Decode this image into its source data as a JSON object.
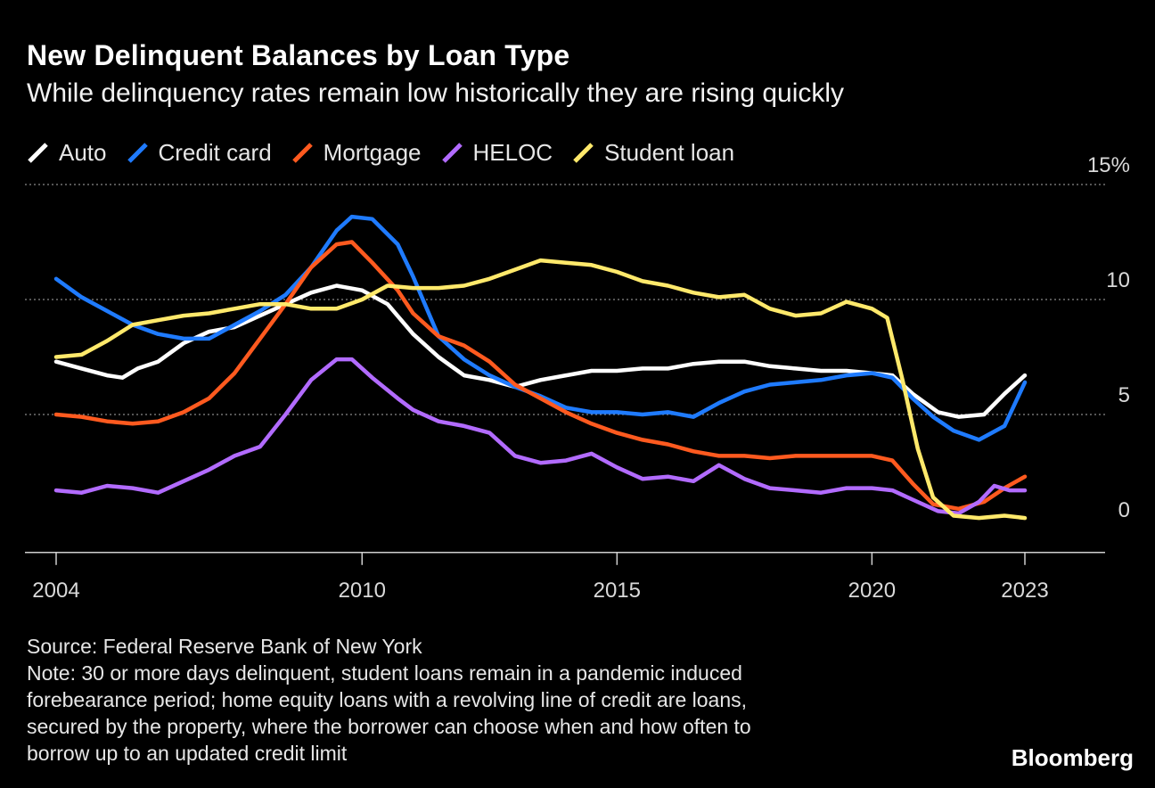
{
  "header": {
    "title": "New Delinquent Balances by Loan Type",
    "subtitle": "While delinquency rates remain low historically they are rising quickly"
  },
  "footer": {
    "source": "Source: Federal Reserve Bank of New York",
    "note_lines": [
      "Note: 30 or more days delinquent, student loans remain in a pandemic induced",
      "forebearance period; home equity loans with a revolving line of credit are loans,",
      "secured by the property, where the borrower can choose when and how often to",
      "borrow up to an updated credit limit"
    ],
    "brand": "Bloomberg"
  },
  "chart_data": {
    "type": "line",
    "title": "New Delinquent Balances by Loan Type",
    "subtitle": "While delinquency rates remain low historically they are rising quickly",
    "xlabel": "",
    "ylabel": "",
    "xlim": [
      2004,
      2025.5
    ],
    "ylim": [
      -1,
      15
    ],
    "x_ticks": [
      {
        "value": 2004,
        "label": "2004"
      },
      {
        "value": 2010,
        "label": "2010"
      },
      {
        "value": 2015,
        "label": "2015"
      },
      {
        "value": 2020,
        "label": "2020"
      },
      {
        "value": 2023,
        "label": "2023"
      }
    ],
    "y_ticks": [
      {
        "value": 0,
        "label": "0"
      },
      {
        "value": 5,
        "label": "5"
      },
      {
        "value": 10,
        "label": "10"
      },
      {
        "value": 15,
        "label": "15%"
      }
    ],
    "grid": "horizontal dotted",
    "legend_position": "top-left",
    "series": [
      {
        "name": "Auto",
        "color": "#ffffff",
        "points": [
          [
            2004,
            7.3
          ],
          [
            2004.5,
            7.0
          ],
          [
            2005,
            6.7
          ],
          [
            2005.3,
            6.6
          ],
          [
            2005.6,
            7.0
          ],
          [
            2006,
            7.3
          ],
          [
            2006.5,
            8.1
          ],
          [
            2007,
            8.6
          ],
          [
            2007.5,
            8.8
          ],
          [
            2008,
            9.3
          ],
          [
            2008.5,
            9.8
          ],
          [
            2009,
            10.3
          ],
          [
            2009.5,
            10.6
          ],
          [
            2010,
            10.4
          ],
          [
            2010.5,
            9.8
          ],
          [
            2011,
            8.5
          ],
          [
            2011.5,
            7.5
          ],
          [
            2012,
            6.7
          ],
          [
            2012.5,
            6.5
          ],
          [
            2013,
            6.2
          ],
          [
            2013.5,
            6.5
          ],
          [
            2014,
            6.7
          ],
          [
            2014.5,
            6.9
          ],
          [
            2015,
            6.9
          ],
          [
            2015.5,
            7.0
          ],
          [
            2016,
            7.0
          ],
          [
            2016.5,
            7.2
          ],
          [
            2017,
            7.3
          ],
          [
            2017.5,
            7.3
          ],
          [
            2018,
            7.1
          ],
          [
            2018.5,
            7.0
          ],
          [
            2019,
            6.9
          ],
          [
            2019.5,
            6.9
          ],
          [
            2020,
            6.8
          ],
          [
            2020.4,
            6.7
          ],
          [
            2020.8,
            5.9
          ],
          [
            2021.3,
            5.1
          ],
          [
            2021.7,
            4.9
          ],
          [
            2022.2,
            5.0
          ],
          [
            2022.6,
            5.9
          ],
          [
            2023,
            6.7
          ]
        ]
      },
      {
        "name": "Credit card",
        "color": "#1f7bff",
        "points": [
          [
            2004,
            10.9
          ],
          [
            2004.5,
            10.1
          ],
          [
            2005,
            9.5
          ],
          [
            2005.5,
            8.9
          ],
          [
            2006,
            8.5
          ],
          [
            2006.5,
            8.3
          ],
          [
            2007,
            8.3
          ],
          [
            2007.5,
            8.9
          ],
          [
            2008,
            9.5
          ],
          [
            2008.5,
            10.2
          ],
          [
            2009,
            11.4
          ],
          [
            2009.5,
            13.0
          ],
          [
            2009.8,
            13.6
          ],
          [
            2010.2,
            13.5
          ],
          [
            2010.7,
            12.4
          ],
          [
            2011,
            11.0
          ],
          [
            2011.5,
            8.4
          ],
          [
            2012,
            7.4
          ],
          [
            2012.5,
            6.7
          ],
          [
            2013,
            6.2
          ],
          [
            2013.5,
            5.8
          ],
          [
            2014,
            5.3
          ],
          [
            2014.5,
            5.1
          ],
          [
            2015,
            5.1
          ],
          [
            2015.5,
            5.0
          ],
          [
            2016,
            5.1
          ],
          [
            2016.5,
            4.9
          ],
          [
            2017,
            5.5
          ],
          [
            2017.5,
            6.0
          ],
          [
            2018,
            6.3
          ],
          [
            2018.5,
            6.4
          ],
          [
            2019,
            6.5
          ],
          [
            2019.5,
            6.7
          ],
          [
            2020,
            6.8
          ],
          [
            2020.4,
            6.6
          ],
          [
            2020.8,
            5.7
          ],
          [
            2021.2,
            4.9
          ],
          [
            2021.6,
            4.3
          ],
          [
            2022.1,
            3.9
          ],
          [
            2022.6,
            4.5
          ],
          [
            2023,
            6.4
          ]
        ]
      },
      {
        "name": "Mortgage",
        "color": "#ff5a1f",
        "points": [
          [
            2004,
            5.0
          ],
          [
            2004.5,
            4.9
          ],
          [
            2005,
            4.7
          ],
          [
            2005.5,
            4.6
          ],
          [
            2006,
            4.7
          ],
          [
            2006.5,
            5.1
          ],
          [
            2007,
            5.7
          ],
          [
            2007.5,
            6.8
          ],
          [
            2008,
            8.3
          ],
          [
            2008.5,
            9.8
          ],
          [
            2009,
            11.4
          ],
          [
            2009.5,
            12.4
          ],
          [
            2009.8,
            12.5
          ],
          [
            2010.2,
            11.6
          ],
          [
            2010.7,
            10.4
          ],
          [
            2011,
            9.4
          ],
          [
            2011.5,
            8.4
          ],
          [
            2012,
            8.0
          ],
          [
            2012.5,
            7.3
          ],
          [
            2013,
            6.3
          ],
          [
            2013.5,
            5.7
          ],
          [
            2014,
            5.1
          ],
          [
            2014.5,
            4.6
          ],
          [
            2015,
            4.2
          ],
          [
            2015.5,
            3.9
          ],
          [
            2016,
            3.7
          ],
          [
            2016.5,
            3.4
          ],
          [
            2017,
            3.2
          ],
          [
            2017.5,
            3.2
          ],
          [
            2018,
            3.1
          ],
          [
            2018.5,
            3.2
          ],
          [
            2019,
            3.2
          ],
          [
            2019.5,
            3.2
          ],
          [
            2020,
            3.2
          ],
          [
            2020.4,
            3.0
          ],
          [
            2020.8,
            2.0
          ],
          [
            2021.2,
            1.1
          ],
          [
            2021.7,
            0.9
          ],
          [
            2022.2,
            1.2
          ],
          [
            2022.6,
            1.8
          ],
          [
            2023,
            2.3
          ]
        ]
      },
      {
        "name": "HELOC",
        "color": "#b26bff",
        "points": [
          [
            2004,
            1.7
          ],
          [
            2004.5,
            1.6
          ],
          [
            2005,
            1.9
          ],
          [
            2005.5,
            1.8
          ],
          [
            2006,
            1.6
          ],
          [
            2006.5,
            2.1
          ],
          [
            2007,
            2.6
          ],
          [
            2007.5,
            3.2
          ],
          [
            2008,
            3.6
          ],
          [
            2008.5,
            5.0
          ],
          [
            2009,
            6.5
          ],
          [
            2009.5,
            7.4
          ],
          [
            2009.8,
            7.4
          ],
          [
            2010.2,
            6.6
          ],
          [
            2010.7,
            5.7
          ],
          [
            2011,
            5.2
          ],
          [
            2011.5,
            4.7
          ],
          [
            2012,
            4.5
          ],
          [
            2012.5,
            4.2
          ],
          [
            2013,
            3.2
          ],
          [
            2013.5,
            2.9
          ],
          [
            2014,
            3.0
          ],
          [
            2014.5,
            3.3
          ],
          [
            2015,
            2.7
          ],
          [
            2015.5,
            2.2
          ],
          [
            2016,
            2.3
          ],
          [
            2016.5,
            2.1
          ],
          [
            2017,
            2.8
          ],
          [
            2017.5,
            2.2
          ],
          [
            2018,
            1.8
          ],
          [
            2018.5,
            1.7
          ],
          [
            2019,
            1.6
          ],
          [
            2019.5,
            1.8
          ],
          [
            2020,
            1.8
          ],
          [
            2020.4,
            1.7
          ],
          [
            2020.8,
            1.3
          ],
          [
            2021.3,
            0.8
          ],
          [
            2021.7,
            0.7
          ],
          [
            2022.1,
            1.2
          ],
          [
            2022.4,
            1.9
          ],
          [
            2022.7,
            1.7
          ],
          [
            2023,
            1.7
          ]
        ]
      },
      {
        "name": "Student loan",
        "color": "#ffe96b",
        "points": [
          [
            2004,
            7.5
          ],
          [
            2004.5,
            7.6
          ],
          [
            2005,
            8.2
          ],
          [
            2005.5,
            8.9
          ],
          [
            2006,
            9.1
          ],
          [
            2006.5,
            9.3
          ],
          [
            2007,
            9.4
          ],
          [
            2007.5,
            9.6
          ],
          [
            2008,
            9.8
          ],
          [
            2008.5,
            9.8
          ],
          [
            2009,
            9.6
          ],
          [
            2009.5,
            9.6
          ],
          [
            2010,
            10.0
          ],
          [
            2010.5,
            10.6
          ],
          [
            2011,
            10.5
          ],
          [
            2011.5,
            10.5
          ],
          [
            2012,
            10.6
          ],
          [
            2012.5,
            10.9
          ],
          [
            2013,
            11.3
          ],
          [
            2013.5,
            11.7
          ],
          [
            2014,
            11.6
          ],
          [
            2014.5,
            11.5
          ],
          [
            2015,
            11.2
          ],
          [
            2015.5,
            10.8
          ],
          [
            2016,
            10.6
          ],
          [
            2016.5,
            10.3
          ],
          [
            2017,
            10.1
          ],
          [
            2017.5,
            10.2
          ],
          [
            2018,
            9.6
          ],
          [
            2018.5,
            9.3
          ],
          [
            2019,
            9.4
          ],
          [
            2019.5,
            9.9
          ],
          [
            2020,
            9.6
          ],
          [
            2020.3,
            9.2
          ],
          [
            2020.6,
            6.5
          ],
          [
            2020.9,
            3.5
          ],
          [
            2021.2,
            1.4
          ],
          [
            2021.6,
            0.6
          ],
          [
            2022.1,
            0.5
          ],
          [
            2022.6,
            0.6
          ],
          [
            2023,
            0.5
          ]
        ]
      }
    ]
  }
}
